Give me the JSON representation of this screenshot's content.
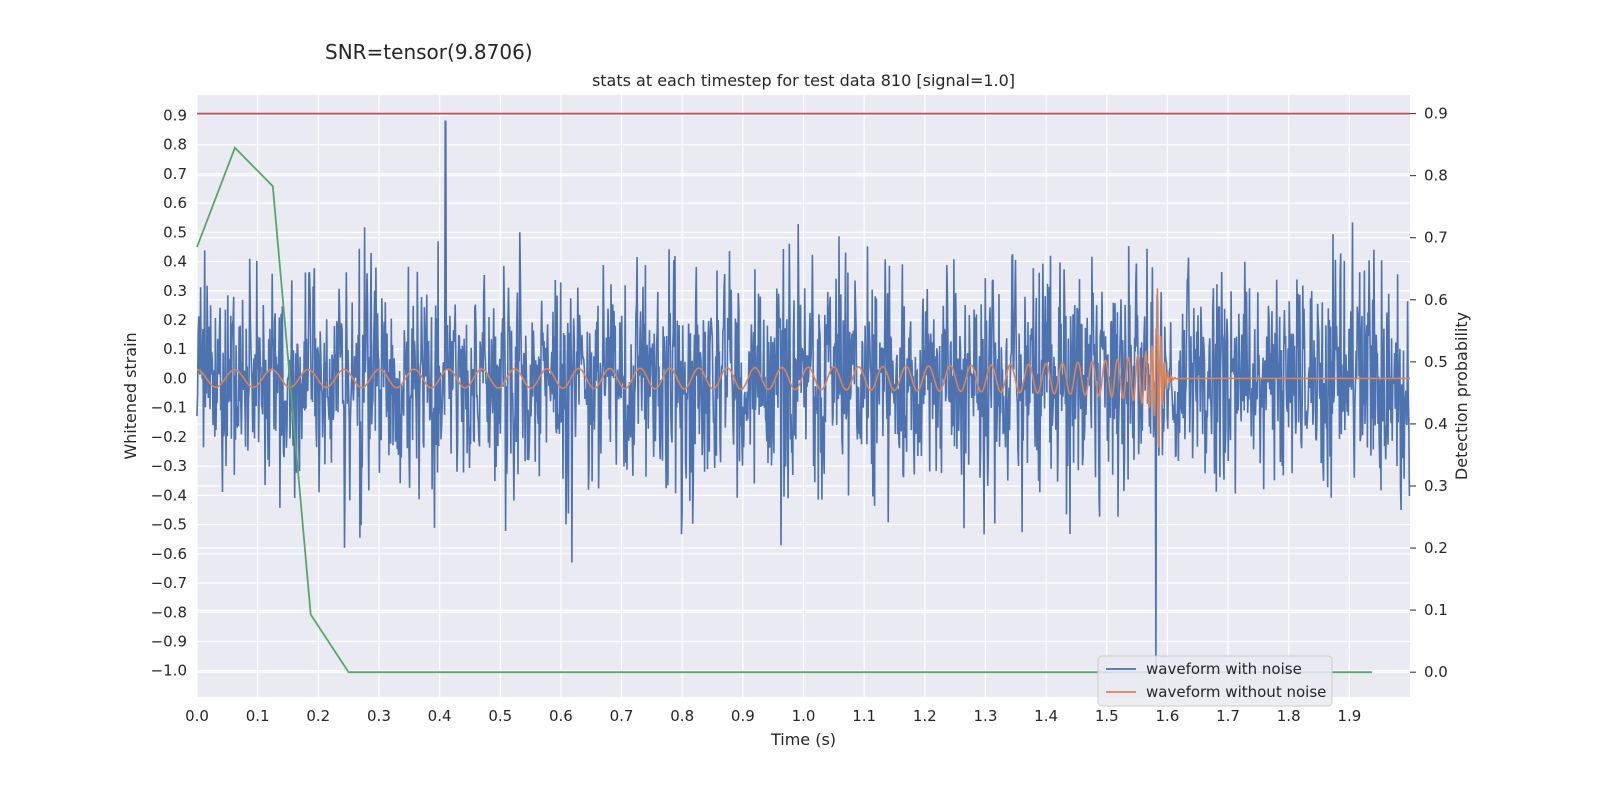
{
  "suptitle": "SNR=tensor(9.8706)",
  "chart_data": {
    "type": "line",
    "title": "stats at each timestep for test data 810 [signal=1.0]",
    "xlabel": "Time (s)",
    "ylabel": "Whitened strain",
    "y2label": "Detection probability",
    "xlim": [
      0,
      2
    ],
    "ylim": [
      -1.09,
      0.97
    ],
    "y2lim": [
      -0.04,
      0.93
    ],
    "x_ticks": [
      "0.0",
      "0.1",
      "0.2",
      "0.3",
      "0.4",
      "0.5",
      "0.6",
      "0.7",
      "0.8",
      "0.9",
      "1.0",
      "1.1",
      "1.2",
      "1.3",
      "1.4",
      "1.5",
      "1.6",
      "1.7",
      "1.8",
      "1.9"
    ],
    "y_ticks": [
      "0.9",
      "0.8",
      "0.7",
      "0.6",
      "0.5",
      "0.4",
      "0.3",
      "0.2",
      "0.1",
      "0.0",
      "−0.1",
      "−0.2",
      "−0.3",
      "−0.4",
      "−0.5",
      "−0.6",
      "−0.7",
      "−0.8",
      "−0.9",
      "−1.0"
    ],
    "y2_ticks": [
      "0.9",
      "0.8",
      "0.7",
      "0.6",
      "0.5",
      "0.4",
      "0.3",
      "0.2",
      "0.1",
      "0.0"
    ],
    "grid": true,
    "legend_position": "lower-right",
    "series": [
      {
        "name": "waveform with noise",
        "color": "#4c72b0",
        "axis": "left",
        "description": "whitened strain noise samples, roughly uniform amplitude within about ±0.5, extreme samples near 0.88 (t≈0.41) and -1.0 (t≈1.58)"
      },
      {
        "name": "waveform without noise",
        "color": "#dd8452",
        "axis": "left",
        "chirp": {
          "t_merger": 1.583,
          "amp_start": 0.035,
          "amp_peak": 0.39,
          "f_start": 16,
          "f_end": 160,
          "ringdown_end": 1.61
        }
      },
      {
        "color": "#55a868",
        "axis": "right",
        "x": [
          0.0,
          0.0625,
          0.125,
          0.1875,
          0.25,
          0.3125,
          0.375,
          0.5,
          1.0,
          1.5,
          1.9375
        ],
        "y": [
          0.685,
          0.845,
          0.783,
          0.093,
          0.0,
          0.0,
          0.0,
          0.0,
          0.0,
          0.0,
          0.0
        ]
      },
      {
        "color": "#c44e52",
        "axis": "right",
        "x": [
          0,
          2
        ],
        "y": [
          0.9,
          0.9
        ]
      }
    ],
    "legend": [
      "waveform with noise",
      "waveform without noise"
    ]
  }
}
